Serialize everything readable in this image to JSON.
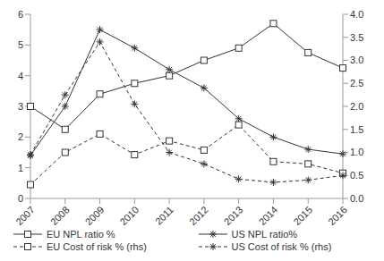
{
  "chart_data": {
    "type": "line",
    "categories": [
      "2007",
      "2008",
      "2009",
      "2010",
      "2011",
      "2012",
      "2013",
      "2014",
      "2015",
      "2016"
    ],
    "ylim": [
      0,
      6
    ],
    "yticks": [
      0,
      1,
      2,
      3,
      4,
      5,
      6
    ],
    "y2lim": [
      0,
      4
    ],
    "y2ticks": [
      {
        "value": 0,
        "label": "0.0"
      },
      {
        "value": 0.5,
        "label": "0.5"
      },
      {
        "value": 1,
        "label": "1.0"
      },
      {
        "value": 1.5,
        "label": "1.5"
      },
      {
        "value": 2,
        "label": "2.0"
      },
      {
        "value": 2.5,
        "label": "2.5"
      },
      {
        "value": 3,
        "label": "3.0"
      },
      {
        "value": 3.5,
        "label": "3.5"
      },
      {
        "value": 4,
        "label": "4.0"
      }
    ],
    "grid": false,
    "legend": "bottom",
    "series": [
      {
        "name": "EU NPL ratio %",
        "color": "#333333",
        "marker": "square",
        "line_style": "solid",
        "values": [
          3.0,
          2.25,
          3.4,
          3.75,
          4.0,
          4.5,
          4.9,
          5.7,
          4.75,
          4.25
        ]
      },
      {
        "name": "US NPL ratio%",
        "color": "#333333",
        "marker": "asterisk",
        "line_style": "solid",
        "values": [
          1.4,
          3.0,
          5.5,
          4.9,
          4.2,
          3.6,
          2.6,
          2.0,
          1.6,
          1.45
        ]
      },
      {
        "name": "EU Cost of risk % (rhs)",
        "color": "#333333",
        "marker": "square",
        "line_style": "dashed",
        "axis": "y2",
        "values": [
          0.3,
          1.0,
          1.4,
          0.95,
          1.25,
          1.05,
          1.6,
          0.8,
          0.75,
          0.55
        ]
      },
      {
        "name": "US Cost of risk % (rhs)",
        "color": "#333333",
        "marker": "asterisk",
        "line_style": "dashed",
        "axis": "y2",
        "values": [
          0.95,
          2.25,
          3.4,
          2.05,
          1.0,
          0.75,
          0.42,
          0.35,
          0.4,
          0.5
        ]
      }
    ]
  }
}
